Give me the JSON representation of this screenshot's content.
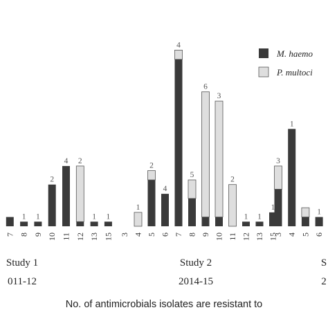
{
  "chart_data": {
    "type": "bar",
    "stacked": true,
    "xlabel": "No. of antimicrobials isolates are resistant to",
    "colors": {
      "m_haemolytica": "#3a3a3a",
      "p_multocida": "#dedede",
      "stroke": "#555555"
    },
    "legend": {
      "placement": "top-right",
      "entries": [
        {
          "key": "m_haemolytica",
          "label": "M. haemo"
        },
        {
          "key": "p_multocida",
          "label": "P. multoci"
        }
      ]
    },
    "groups": [
      {
        "name": "Study 1",
        "years": "011-12",
        "categories": [
          "",
          "7",
          "8",
          "9",
          "10",
          "11",
          "12",
          "13",
          "15"
        ],
        "m_haemolytica": [
          7,
          2,
          1,
          1,
          9,
          13,
          1,
          1,
          1
        ],
        "p_multocida": [
          20,
          0,
          0,
          0,
          0,
          0,
          12,
          0,
          0
        ],
        "labels": [
          "1",
          "",
          "1",
          "1",
          "2",
          "4",
          "2",
          "1",
          "1"
        ]
      },
      {
        "name": "Study 2",
        "years": "2014-15",
        "categories": [
          "3",
          "4",
          "5",
          "6",
          "7",
          "8",
          "9",
          "10",
          "11",
          "12",
          "13",
          "15"
        ],
        "m_haemolytica": [
          0,
          0,
          10,
          7,
          36,
          6,
          2,
          2,
          0,
          1,
          1,
          3
        ],
        "p_multocida": [
          0,
          3,
          2,
          0,
          2,
          4,
          27,
          25,
          9,
          0,
          0,
          0
        ],
        "labels": [
          "",
          "1",
          "2",
          "4",
          "4",
          "5",
          "6",
          "3",
          "2",
          "1",
          "1",
          "1"
        ]
      },
      {
        "name": "S",
        "years": "2",
        "categories": [
          "3",
          "4",
          "5",
          "6"
        ],
        "m_haemolytica": [
          8,
          21,
          2,
          2
        ],
        "p_multocida": [
          5,
          0,
          2,
          0
        ],
        "labels": [
          "3",
          "1",
          "",
          "1"
        ]
      }
    ]
  }
}
